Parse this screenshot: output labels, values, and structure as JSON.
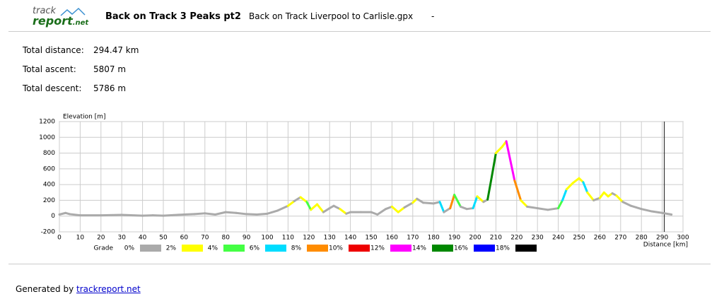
{
  "header": {
    "logo_top": "track",
    "logo_bottom": "report",
    "logo_suffix": ".net",
    "title": "Back on Track 3 Peaks pt2",
    "file": "Back on Track Liverpool to Carlisle.gpx",
    "separator": "-"
  },
  "stats": [
    {
      "label": "Total distance:",
      "value": "294.47 km"
    },
    {
      "label": "Total ascent:",
      "value": "5807 m"
    },
    {
      "label": "Total descent:",
      "value": "5786 m"
    }
  ],
  "chart_data": {
    "type": "line",
    "y_label": "Elevation [m]",
    "x_label": "Distance [km]",
    "x": [
      0,
      3,
      5,
      10,
      20,
      30,
      40,
      45,
      50,
      60,
      65,
      70,
      75,
      80,
      85,
      90,
      95,
      100,
      105,
      110,
      113,
      116,
      119,
      121,
      124,
      127,
      130,
      132,
      135,
      138,
      140,
      145,
      150,
      153,
      157,
      160,
      163,
      166,
      170,
      172,
      175,
      180,
      183,
      185,
      188,
      190,
      193,
      196,
      199,
      201,
      204,
      206,
      208,
      210,
      213,
      215,
      217,
      219,
      222,
      225,
      230,
      235,
      240,
      242,
      244,
      247,
      250,
      252,
      254,
      257,
      260,
      262,
      264,
      266,
      268,
      271,
      275,
      280,
      285,
      290,
      294.47
    ],
    "values": [
      20,
      40,
      25,
      10,
      10,
      15,
      5,
      10,
      5,
      20,
      25,
      35,
      20,
      50,
      40,
      25,
      20,
      30,
      70,
      130,
      190,
      240,
      180,
      80,
      150,
      50,
      100,
      130,
      90,
      30,
      50,
      50,
      50,
      20,
      90,
      120,
      50,
      110,
      170,
      220,
      170,
      160,
      180,
      50,
      100,
      270,
      120,
      90,
      100,
      250,
      180,
      210,
      500,
      800,
      880,
      950,
      700,
      450,
      200,
      120,
      100,
      80,
      100,
      200,
      340,
      420,
      480,
      430,
      300,
      200,
      230,
      300,
      250,
      290,
      260,
      180,
      130,
      90,
      60,
      40,
      20
    ],
    "marker_x": 291,
    "xlim": [
      0,
      300
    ],
    "xticks": [
      0,
      10,
      20,
      30,
      40,
      50,
      60,
      70,
      80,
      90,
      100,
      110,
      120,
      130,
      140,
      150,
      160,
      170,
      180,
      190,
      200,
      210,
      220,
      230,
      240,
      250,
      260,
      270,
      280,
      290,
      300
    ],
    "ylim": [
      -200,
      1200
    ],
    "yticks": [
      -200,
      0,
      200,
      400,
      600,
      800,
      1000,
      1200
    ],
    "grid": true,
    "legend": {
      "title": "Grade",
      "bins": [
        {
          "value": 0,
          "label": "0%"
        },
        {
          "value": 2,
          "label": "2%"
        },
        {
          "value": 4,
          "label": "4%"
        },
        {
          "value": 6,
          "label": "6%"
        },
        {
          "value": 8,
          "label": "8%"
        },
        {
          "value": 10,
          "label": "10%"
        },
        {
          "value": 12,
          "label": "12%"
        },
        {
          "value": 14,
          "label": "14%"
        },
        {
          "value": 16,
          "label": "16%"
        },
        {
          "value": 18,
          "label": "18%"
        }
      ],
      "colors": [
        "#aaaaaa",
        "#ffff00",
        "#44ff44",
        "#00ddff",
        "#ff8c00",
        "#ee0000",
        "#ff00ff",
        "#008800",
        "#0000ff",
        "#000000"
      ]
    }
  },
  "footer": {
    "text": "Generated by",
    "link": "trackreport.net"
  }
}
